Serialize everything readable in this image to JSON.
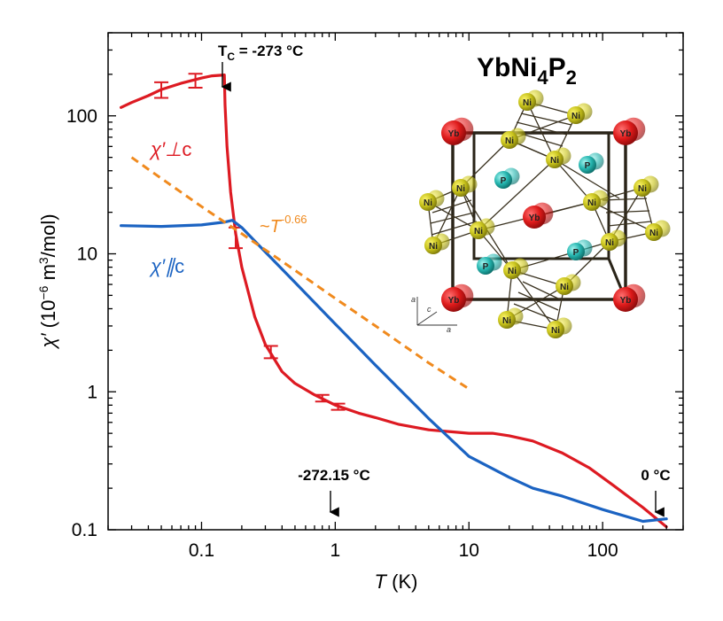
{
  "chart_data": {
    "type": "line",
    "xscale": "log",
    "yscale": "log",
    "xlim": [
      0.02,
      400
    ],
    "ylim": [
      0.1,
      400
    ],
    "xticks": [
      0.1,
      1,
      10,
      100
    ],
    "xtick_labels": [
      "0.1",
      "1",
      "10",
      "100"
    ],
    "yticks": [
      0.1,
      1,
      10,
      100
    ],
    "ytick_labels": [
      "0.1",
      "1",
      "10",
      "100"
    ],
    "xlabel": {
      "symbol": "T",
      "unit": " (K)"
    },
    "ylabel": {
      "symbol": "χ′",
      "rest_a": " (10",
      "exp_a": "−6",
      "rest_b": " m",
      "exp_b": "3",
      "rest_c": "/mol)"
    },
    "series": [
      {
        "name": "χ′⊥c",
        "color": "#dd1a22",
        "points": [
          [
            0.025,
            115
          ],
          [
            0.03,
            125
          ],
          [
            0.04,
            140
          ],
          [
            0.05,
            155
          ],
          [
            0.07,
            172
          ],
          [
            0.1,
            188
          ],
          [
            0.12,
            195
          ],
          [
            0.148,
            198
          ],
          [
            0.15,
            120
          ],
          [
            0.155,
            60
          ],
          [
            0.165,
            28
          ],
          [
            0.18,
            14
          ],
          [
            0.2,
            8
          ],
          [
            0.25,
            3.5
          ],
          [
            0.3,
            2.2
          ],
          [
            0.4,
            1.4
          ],
          [
            0.5,
            1.15
          ],
          [
            0.7,
            0.95
          ],
          [
            1.0,
            0.8
          ],
          [
            1.5,
            0.7
          ],
          [
            2.0,
            0.65
          ],
          [
            3.0,
            0.58
          ],
          [
            5.0,
            0.53
          ],
          [
            10,
            0.5
          ],
          [
            15,
            0.5
          ],
          [
            20,
            0.48
          ],
          [
            30,
            0.44
          ],
          [
            50,
            0.36
          ],
          [
            80,
            0.28
          ],
          [
            120,
            0.21
          ],
          [
            200,
            0.145
          ],
          [
            300,
            0.105
          ]
        ],
        "error_bars": [
          {
            "x": 0.05,
            "y": 155,
            "low": 135,
            "high": 175
          },
          {
            "x": 0.09,
            "y": 180,
            "low": 160,
            "high": 202
          },
          {
            "x": 0.18,
            "y": 13,
            "low": 11,
            "high": 15.5
          },
          {
            "x": 0.33,
            "y": 1.95,
            "low": 1.75,
            "high": 2.15
          },
          {
            "x": 0.8,
            "y": 0.9,
            "low": 0.85,
            "high": 0.95
          },
          {
            "x": 1.05,
            "y": 0.78,
            "low": 0.74,
            "high": 0.82
          }
        ]
      },
      {
        "name": "χ′∥c",
        "color": "#1b63c2",
        "points": [
          [
            0.025,
            16
          ],
          [
            0.05,
            15.8
          ],
          [
            0.1,
            16.2
          ],
          [
            0.15,
            17
          ],
          [
            0.17,
            17.5
          ],
          [
            0.2,
            15.5
          ],
          [
            0.3,
            10.3
          ],
          [
            0.5,
            6.2
          ],
          [
            1.0,
            3.1
          ],
          [
            2.0,
            1.56
          ],
          [
            5.0,
            0.64
          ],
          [
            10,
            0.34
          ],
          [
            20,
            0.24
          ],
          [
            30,
            0.2
          ],
          [
            50,
            0.175
          ],
          [
            100,
            0.14
          ],
          [
            200,
            0.115
          ],
          [
            300,
            0.12
          ]
        ]
      },
      {
        "name": "~T^-0.66",
        "color": "#f08a1e",
        "dashed": true,
        "points": [
          [
            0.03,
            50
          ],
          [
            0.04,
            41
          ],
          [
            0.1,
            22
          ],
          [
            0.2,
            14
          ],
          [
            0.5,
            7.6
          ],
          [
            1.0,
            4.75
          ],
          [
            2.0,
            3.0
          ],
          [
            5.0,
            1.62
          ],
          [
            10,
            1.05
          ]
        ]
      }
    ],
    "annotations": {
      "series_label_perp": {
        "main": "χ′⊥",
        "tail": "c"
      },
      "series_label_par": {
        "main": "χ′∥",
        "tail": "c"
      },
      "power_law": {
        "prefix": "~",
        "symbol": "T",
        "exponent": "-0.66"
      },
      "tc": {
        "main": "T",
        "sub": "C",
        "rest": " = -273 °C",
        "x": 0.15
      },
      "one_kelvin": {
        "text": "-272.15 °C",
        "x": 1.0
      },
      "zero_celsius": {
        "text": "0 °C",
        "x": 300
      }
    },
    "legend": "inline",
    "grid": false
  },
  "inset": {
    "formula": {
      "el1": "YbNi",
      "sub1": "4",
      "el2": "P",
      "sub2": "2"
    },
    "atom_labels": {
      "yb": "Yb",
      "ni": "Ni",
      "p": "P"
    },
    "axes_letters": {
      "a": "a",
      "c": "c"
    },
    "colors": {
      "yb": "#d81818",
      "ni": "#c8c420",
      "p": "#22b6b0",
      "bond": "#3a3220"
    }
  }
}
